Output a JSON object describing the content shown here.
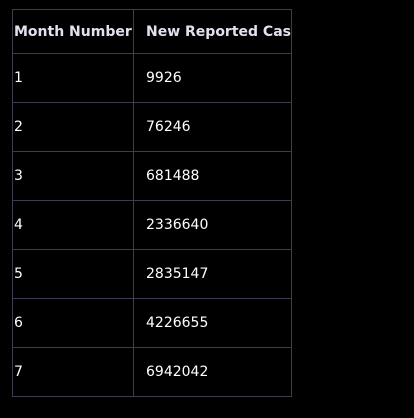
{
  "chart_data": {
    "type": "table",
    "columns": [
      "Month Number",
      "New Reported Cases"
    ],
    "rows": [
      [
        "1",
        "9926"
      ],
      [
        "2",
        "76246"
      ],
      [
        "3",
        "681488"
      ],
      [
        "4",
        "2336640"
      ],
      [
        "5",
        "2835147"
      ],
      [
        "6",
        "4226655"
      ],
      [
        "7",
        "6942042"
      ]
    ]
  },
  "colors": {
    "background": "#000000",
    "border": "#3d3d52",
    "header_text": "#e2e2ee",
    "cell_text": "#ffffff"
  }
}
